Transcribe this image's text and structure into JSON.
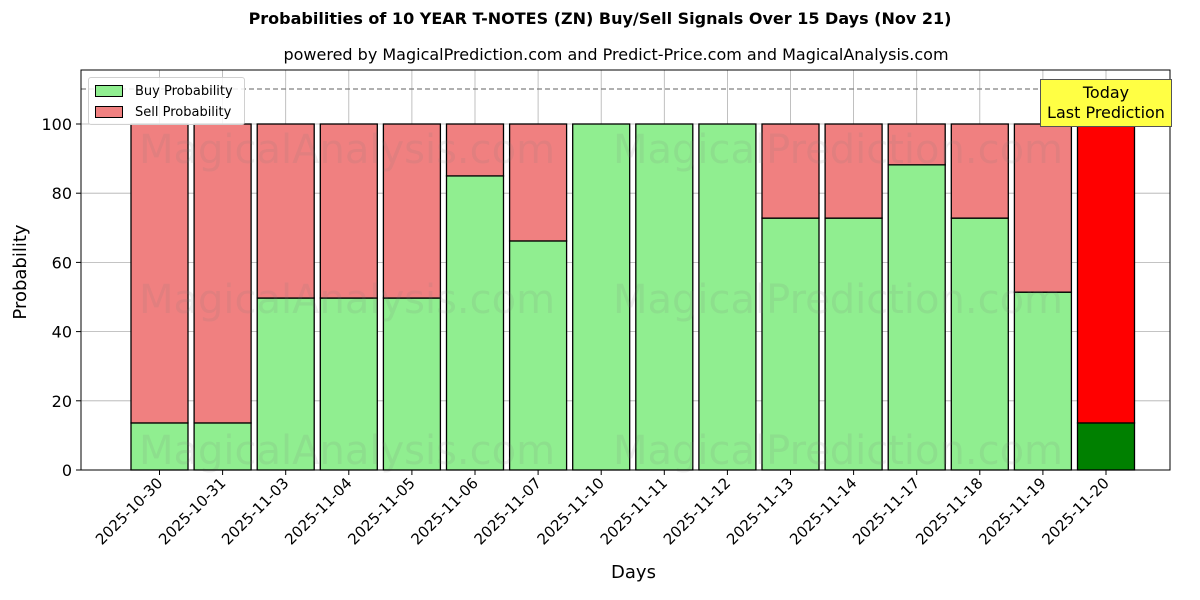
{
  "header": {
    "title": "Probabilities of 10 YEAR T-NOTES (ZN) Buy/Sell Signals Over 15 Days (Nov 21)",
    "subtitle": "powered by MagicalPrediction.com and Predict-Price.com and MagicalAnalysis.com"
  },
  "legend": {
    "buy_label": "Buy Probability",
    "sell_label": "Sell Probability"
  },
  "annotation": {
    "line1": "Today",
    "line2": "Last Prediction"
  },
  "axes": {
    "xlabel": "Days",
    "ylabel": "Probability"
  },
  "watermarks": [
    "MagicalAnalysis.com",
    "MagicalPrediction.com"
  ],
  "colors": {
    "buy": "#90ee90",
    "sell": "#f08080",
    "today_buy": "#008000",
    "today_sell": "#ff0000",
    "annotation_bg": "#ffff44"
  },
  "chart_data": {
    "type": "bar",
    "stacked": true,
    "title": "Probabilities of 10 YEAR T-NOTES (ZN) Buy/Sell Signals Over 15 Days (Nov 21)",
    "subtitle": "powered by MagicalPrediction.com and Predict-Price.com and MagicalAnalysis.com",
    "xlabel": "Days",
    "ylabel": "Probability",
    "ylim": [
      0,
      115
    ],
    "yticks": [
      0,
      20,
      40,
      60,
      80,
      100
    ],
    "grid": true,
    "legend_position": "upper left",
    "reference_line": {
      "y": 110,
      "style": "dashed",
      "color": "#808080"
    },
    "categories": [
      "2025-10-30",
      "2025-10-31",
      "2025-11-03",
      "2025-11-04",
      "2025-11-05",
      "2025-11-06",
      "2025-11-07",
      "2025-11-10",
      "2025-11-11",
      "2025-11-12",
      "2025-11-13",
      "2025-11-14",
      "2025-11-17",
      "2025-11-18",
      "2025-11-19",
      "2025-11-20"
    ],
    "series": [
      {
        "name": "Buy Probability",
        "values": [
          13.6,
          13.6,
          49.7,
          49.7,
          49.7,
          85.0,
          66.2,
          100,
          100,
          100,
          72.8,
          72.8,
          88.2,
          72.8,
          51.4,
          13.6
        ]
      },
      {
        "name": "Sell Probability",
        "values": [
          86.4,
          86.4,
          50.3,
          50.3,
          50.3,
          15.0,
          33.8,
          0,
          0,
          0,
          27.2,
          27.2,
          11.8,
          27.2,
          48.6,
          86.4
        ]
      }
    ],
    "annotations": [
      {
        "text": "Today\nLast Prediction",
        "x": "2025-11-20"
      }
    ]
  }
}
